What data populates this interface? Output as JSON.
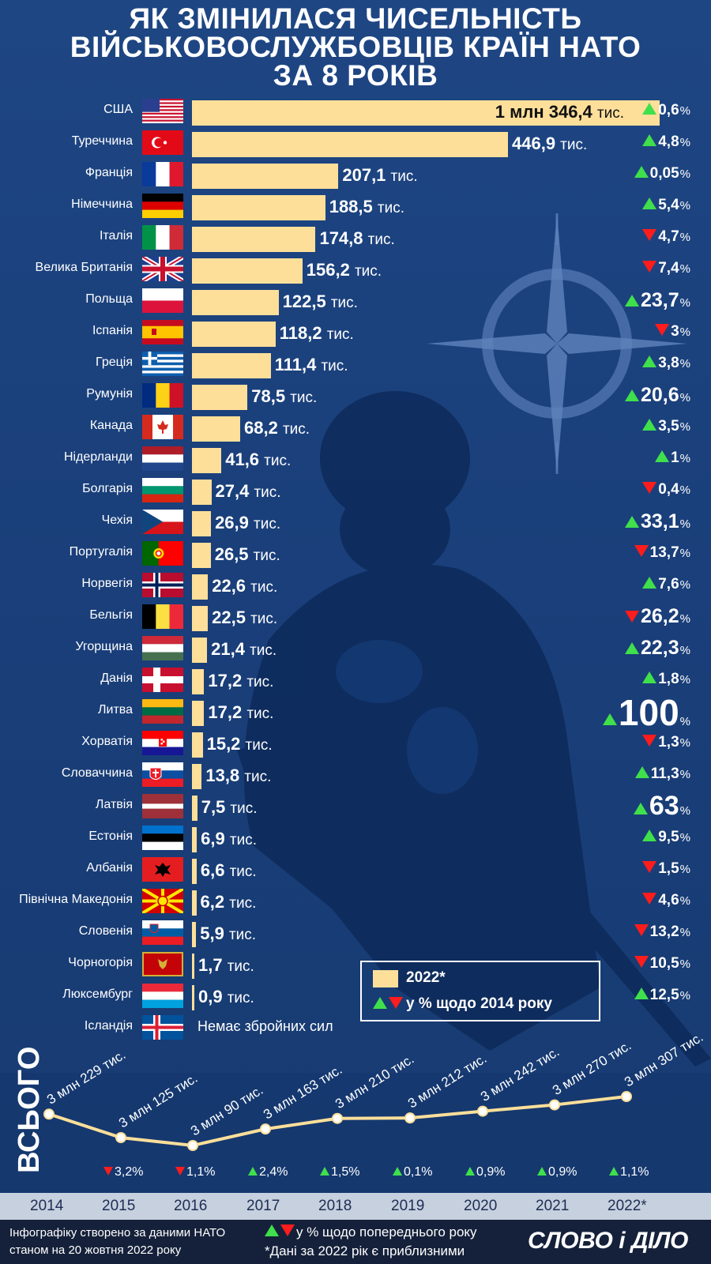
{
  "title": {
    "line1": "ЯК ЗМІНИЛАСЯ ЧИСЕЛЬНІСТЬ",
    "line2": "ВІЙСЬКОВОСЛУЖБОВЦІВ КРАЇН НАТО",
    "line3": "ЗА 8 РОКІВ"
  },
  "colors": {
    "bar": "#fddf9a",
    "up": "#3fe04b",
    "down": "#ff1c1c",
    "background": "#1a3f7a"
  },
  "chart_data": [
    {
      "type": "bar",
      "orientation": "horizontal",
      "unit": "тис.",
      "series_2022_label": "2022*",
      "change_label": "у % щодо 2014 року",
      "no_army_text": "Немає збройних сил",
      "rows": [
        {
          "country": "США",
          "value": 1346.4,
          "value_text": "1 млн 346,4",
          "unit": "тис.",
          "dir": "up",
          "change": "0,6",
          "flag": "us"
        },
        {
          "country": "Туреччина",
          "value": 446.9,
          "value_text": "446,9",
          "unit": "тис.",
          "dir": "up",
          "change": "4,8",
          "flag": "tr"
        },
        {
          "country": "Франція",
          "value": 207.1,
          "value_text": "207,1",
          "unit": "тис.",
          "dir": "up",
          "change": "0,05",
          "flag": "fr"
        },
        {
          "country": "Німеччина",
          "value": 188.5,
          "value_text": "188,5",
          "unit": "тис.",
          "dir": "up",
          "change": "5,4",
          "flag": "de"
        },
        {
          "country": "Італія",
          "value": 174.8,
          "value_text": "174,8",
          "unit": "тис.",
          "dir": "down",
          "change": "4,7",
          "flag": "it"
        },
        {
          "country": "Велика Британія",
          "value": 156.2,
          "value_text": "156,2",
          "unit": "тис.",
          "dir": "down",
          "change": "7,4",
          "flag": "gb"
        },
        {
          "country": "Польща",
          "value": 122.5,
          "value_text": "122,5",
          "unit": "тис.",
          "dir": "up",
          "change": "23,7",
          "flag": "pl"
        },
        {
          "country": "Іспанія",
          "value": 118.2,
          "value_text": "118,2",
          "unit": "тис.",
          "dir": "down",
          "change": "3",
          "flag": "es"
        },
        {
          "country": "Греція",
          "value": 111.4,
          "value_text": "111,4",
          "unit": "тис.",
          "dir": "up",
          "change": "3,8",
          "flag": "gr"
        },
        {
          "country": "Румунія",
          "value": 78.5,
          "value_text": "78,5",
          "unit": "тис.",
          "dir": "up",
          "change": "20,6",
          "flag": "ro"
        },
        {
          "country": "Канада",
          "value": 68.2,
          "value_text": "68,2",
          "unit": "тис.",
          "dir": "up",
          "change": "3,5",
          "flag": "ca"
        },
        {
          "country": "Нідерланди",
          "value": 41.6,
          "value_text": "41,6",
          "unit": "тис.",
          "dir": "up",
          "change": "1",
          "flag": "nl"
        },
        {
          "country": "Болгарія",
          "value": 27.4,
          "value_text": "27,4",
          "unit": "тис.",
          "dir": "down",
          "change": "0,4",
          "flag": "bg"
        },
        {
          "country": "Чехія",
          "value": 26.9,
          "value_text": "26,9",
          "unit": "тис.",
          "dir": "up",
          "change": "33,1",
          "flag": "cz"
        },
        {
          "country": "Португалія",
          "value": 26.5,
          "value_text": "26,5",
          "unit": "тис.",
          "dir": "down",
          "change": "13,7",
          "flag": "pt"
        },
        {
          "country": "Норвегія",
          "value": 22.6,
          "value_text": "22,6",
          "unit": "тис.",
          "dir": "up",
          "change": "7,6",
          "flag": "no"
        },
        {
          "country": "Бельгія",
          "value": 22.5,
          "value_text": "22,5",
          "unit": "тис.",
          "dir": "down",
          "change": "26,2",
          "flag": "be"
        },
        {
          "country": "Угорщина",
          "value": 21.4,
          "value_text": "21,4",
          "unit": "тис.",
          "dir": "up",
          "change": "22,3",
          "flag": "hu"
        },
        {
          "country": "Данія",
          "value": 17.2,
          "value_text": "17,2",
          "unit": "тис.",
          "dir": "up",
          "change": "1,8",
          "flag": "dk"
        },
        {
          "country": "Литва",
          "value": 17.2,
          "value_text": "17,2",
          "unit": "тис.",
          "dir": "up",
          "change": "100",
          "flag": "lt"
        },
        {
          "country": "Хорватія",
          "value": 15.2,
          "value_text": "15,2",
          "unit": "тис.",
          "dir": "down",
          "change": "1,3",
          "flag": "hr"
        },
        {
          "country": "Словаччина",
          "value": 13.8,
          "value_text": "13,8",
          "unit": "тис.",
          "dir": "up",
          "change": "11,3",
          "flag": "sk"
        },
        {
          "country": "Латвія",
          "value": 7.5,
          "value_text": "7,5",
          "unit": "тис.",
          "dir": "up",
          "change": "63",
          "flag": "lv"
        },
        {
          "country": "Естонія",
          "value": 6.9,
          "value_text": "6,9",
          "unit": "тис.",
          "dir": "up",
          "change": "9,5",
          "flag": "ee"
        },
        {
          "country": "Албанія",
          "value": 6.6,
          "value_text": "6,6",
          "unit": "тис.",
          "dir": "down",
          "change": "1,5",
          "flag": "al"
        },
        {
          "country": "Північна Македонія",
          "value": 6.2,
          "value_text": "6,2",
          "unit": "тис.",
          "dir": "down",
          "change": "4,6",
          "flag": "mk"
        },
        {
          "country": "Словенія",
          "value": 5.9,
          "value_text": "5,9",
          "unit": "тис.",
          "dir": "down",
          "change": "13,2",
          "flag": "si"
        },
        {
          "country": "Чорногорія",
          "value": 1.7,
          "value_text": "1,7",
          "unit": "тис.",
          "dir": "down",
          "change": "10,5",
          "flag": "me"
        },
        {
          "country": "Люксембург",
          "value": 0.9,
          "value_text": "0,9",
          "unit": "тис.",
          "dir": "up",
          "change": "12,5",
          "flag": "lu"
        },
        {
          "country": "Ісландія",
          "value": null,
          "value_text": "Немає збройних сил",
          "unit": "",
          "dir": "",
          "change": "",
          "flag": "is"
        }
      ]
    },
    {
      "type": "line",
      "label": "ВСЬОГО",
      "x": [
        "2014",
        "2015",
        "2016",
        "2017",
        "2018",
        "2019",
        "2020",
        "2021",
        "2022*"
      ],
      "values": [
        3229,
        3125,
        3090,
        3163,
        3210,
        3212,
        3242,
        3270,
        3307
      ],
      "value_labels": [
        "3 млн 229 тис.",
        "3 млн 125 тис.",
        "3 млн 90 тис.",
        "3 млн 163 тис.",
        "3 млн 210 тис.",
        "3 млн 212 тис.",
        "3 млн 242 тис.",
        "3 млн 270 тис.",
        "3 млн 307 тис."
      ],
      "changes": [
        {
          "dir": "",
          "value": ""
        },
        {
          "dir": "down",
          "value": "3,2"
        },
        {
          "dir": "down",
          "value": "1,1"
        },
        {
          "dir": "up",
          "value": "2,4"
        },
        {
          "dir": "up",
          "value": "1,5"
        },
        {
          "dir": "up",
          "value": "0,1"
        },
        {
          "dir": "up",
          "value": "0,9"
        },
        {
          "dir": "up",
          "value": "0,9"
        },
        {
          "dir": "up",
          "value": "1,1"
        }
      ]
    }
  ],
  "footer": {
    "source_line1": "Інфографіку створено за даними НАТО",
    "source_line2": "станом на 20 жовтня 2022 року",
    "legend_line1": "у % щодо попереднього року",
    "legend_line2": "*Дані за 2022 рік є приблизними",
    "logo": "СЛОВО і ДІЛО"
  }
}
